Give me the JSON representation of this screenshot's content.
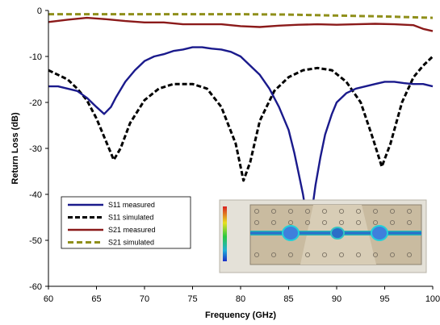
{
  "chart_data": {
    "type": "line",
    "title": "",
    "xlabel": "Frequency (GHz)",
    "ylabel": "Return Loss (dB)",
    "xlim": [
      60,
      100
    ],
    "ylim": [
      -60,
      0
    ],
    "x_ticks": [
      60,
      65,
      70,
      75,
      80,
      85,
      90,
      95,
      100
    ],
    "y_ticks": [
      0,
      -10,
      -20,
      -30,
      -40,
      -50,
      -60
    ],
    "grid": false,
    "legend_position": "bottom-left",
    "series": [
      {
        "name": "S11 measured",
        "color": "#1a1a8c",
        "dash": "solid",
        "points": [
          [
            60,
            -16.5
          ],
          [
            61,
            -16.5
          ],
          [
            62,
            -17
          ],
          [
            63,
            -17.5
          ],
          [
            64,
            -19
          ],
          [
            65,
            -21
          ],
          [
            65.8,
            -22.5
          ],
          [
            66.5,
            -21
          ],
          [
            67,
            -19
          ],
          [
            68,
            -15.5
          ],
          [
            69,
            -13
          ],
          [
            70,
            -11
          ],
          [
            71,
            -10
          ],
          [
            72,
            -9.5
          ],
          [
            73,
            -8.8
          ],
          [
            74,
            -8.5
          ],
          [
            75,
            -8
          ],
          [
            76,
            -8
          ],
          [
            77,
            -8.3
          ],
          [
            78,
            -8.5
          ],
          [
            79,
            -9
          ],
          [
            80,
            -10
          ],
          [
            81,
            -12
          ],
          [
            82,
            -14
          ],
          [
            83,
            -17
          ],
          [
            84,
            -21
          ],
          [
            85,
            -26
          ],
          [
            85.6,
            -31
          ],
          [
            86,
            -35
          ],
          [
            86.5,
            -40
          ],
          [
            86.8,
            -44
          ],
          [
            87.1,
            -47
          ],
          [
            87.4,
            -44
          ],
          [
            87.8,
            -38
          ],
          [
            88.3,
            -32
          ],
          [
            88.8,
            -27
          ],
          [
            89.5,
            -22.5
          ],
          [
            90,
            -20
          ],
          [
            91,
            -18
          ],
          [
            92,
            -17
          ],
          [
            93,
            -16.5
          ],
          [
            94,
            -16
          ],
          [
            95,
            -15.5
          ],
          [
            96,
            -15.5
          ],
          [
            97,
            -15.8
          ],
          [
            98,
            -16
          ],
          [
            99,
            -16
          ],
          [
            100,
            -16.5
          ]
        ]
      },
      {
        "name": "S11 simulated",
        "color": "#000000",
        "dash": "dashed",
        "points": [
          [
            60,
            -13
          ],
          [
            61,
            -14
          ],
          [
            62,
            -15
          ],
          [
            63,
            -17
          ],
          [
            64,
            -19.5
          ],
          [
            65,
            -23.5
          ],
          [
            66,
            -28.5
          ],
          [
            66.8,
            -32.5
          ],
          [
            67.5,
            -30
          ],
          [
            68.5,
            -24.5
          ],
          [
            70,
            -19.5
          ],
          [
            71.5,
            -17
          ],
          [
            73,
            -16
          ],
          [
            75,
            -16
          ],
          [
            76.5,
            -17
          ],
          [
            78,
            -21
          ],
          [
            79.5,
            -29
          ],
          [
            80.3,
            -37
          ],
          [
            81,
            -33
          ],
          [
            82,
            -24
          ],
          [
            83.5,
            -17.5
          ],
          [
            85,
            -14.5
          ],
          [
            86.5,
            -13
          ],
          [
            88,
            -12.5
          ],
          [
            89.5,
            -13
          ],
          [
            91,
            -15.5
          ],
          [
            92.5,
            -20
          ],
          [
            93.8,
            -28
          ],
          [
            94.7,
            -34
          ],
          [
            95.6,
            -29
          ],
          [
            96.8,
            -20
          ],
          [
            98,
            -14.5
          ],
          [
            99,
            -12
          ],
          [
            100,
            -10
          ]
        ]
      },
      {
        "name": "S21 measured",
        "color": "#8b1a1a",
        "dash": "solid",
        "points": [
          [
            60,
            -2.5
          ],
          [
            62,
            -2
          ],
          [
            64,
            -1.6
          ],
          [
            66,
            -1.9
          ],
          [
            68,
            -2.3
          ],
          [
            70,
            -2.6
          ],
          [
            72,
            -2.6
          ],
          [
            74,
            -3
          ],
          [
            76,
            -3
          ],
          [
            78,
            -3
          ],
          [
            80,
            -3.4
          ],
          [
            82,
            -3.6
          ],
          [
            84,
            -3.3
          ],
          [
            86,
            -3.1
          ],
          [
            88,
            -3
          ],
          [
            90,
            -3.1
          ],
          [
            92,
            -3
          ],
          [
            94,
            -2.9
          ],
          [
            96,
            -3
          ],
          [
            98,
            -3.2
          ],
          [
            99,
            -4
          ],
          [
            100,
            -4.5
          ]
        ]
      },
      {
        "name": "S21 simulated",
        "color": "#8f8f1a",
        "dash": "dashed",
        "points": [
          [
            60,
            -0.8
          ],
          [
            65,
            -0.8
          ],
          [
            70,
            -0.8
          ],
          [
            75,
            -0.8
          ],
          [
            80,
            -0.8
          ],
          [
            85,
            -0.9
          ],
          [
            90,
            -1.1
          ],
          [
            95,
            -1.3
          ],
          [
            100,
            -1.6
          ]
        ]
      }
    ]
  }
}
